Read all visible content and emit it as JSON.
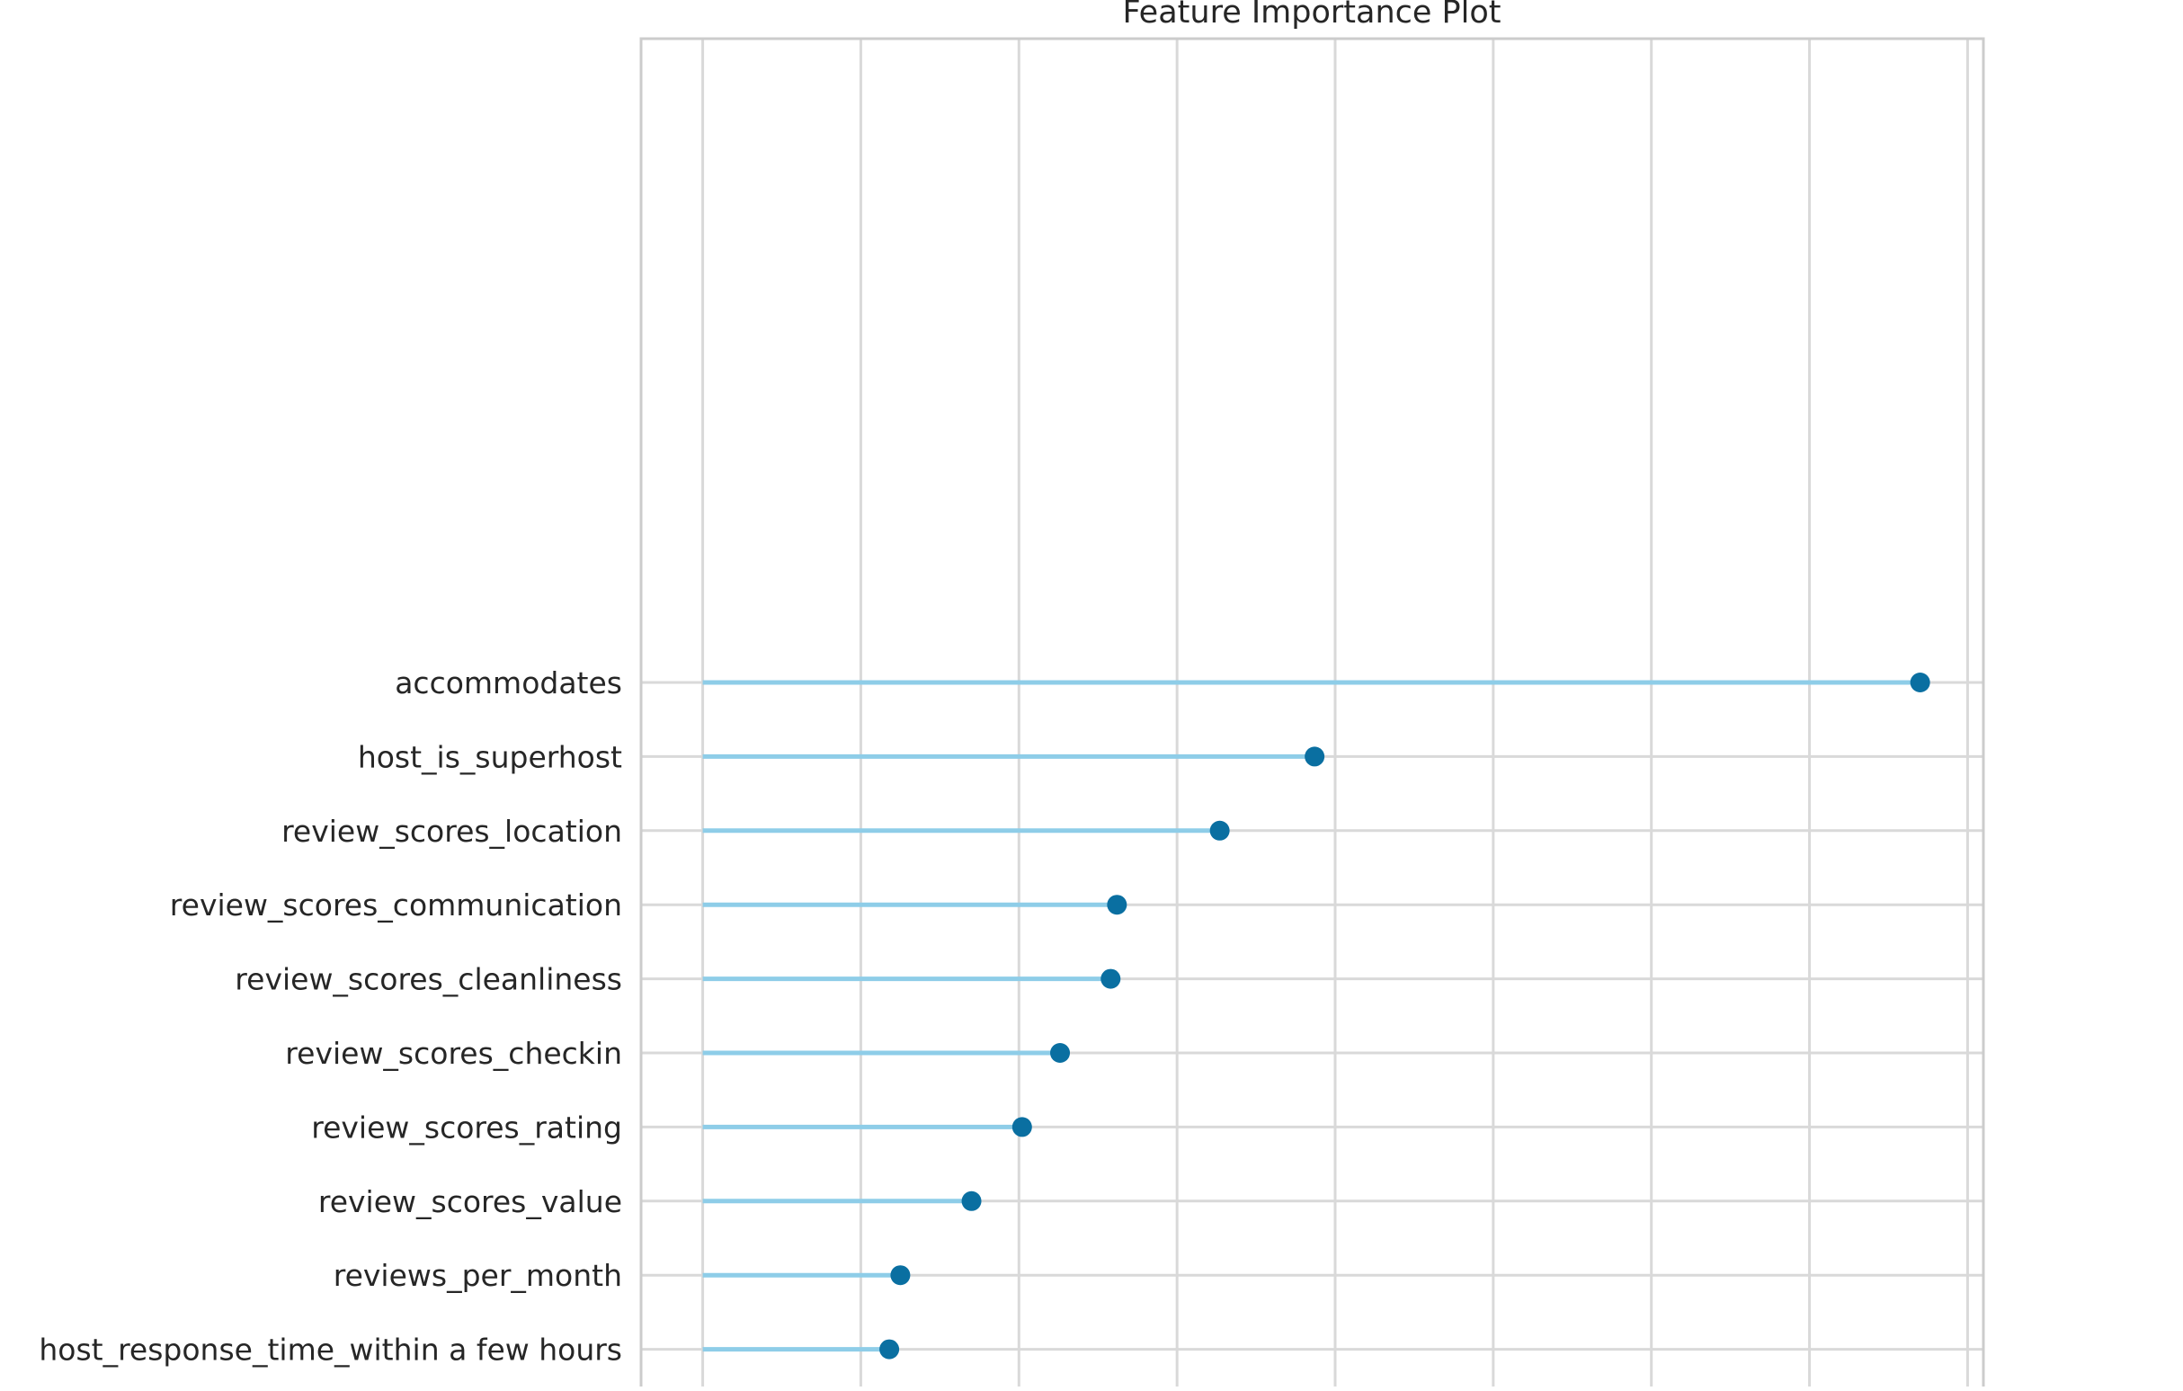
{
  "chart_data": {
    "type": "lollipop",
    "title": "Feature Importance Plot",
    "xlabel": "",
    "ylabel": "",
    "grid": true,
    "categories": [
      "accommodates",
      "host_is_superhost",
      "review_scores_location",
      "review_scores_communication",
      "review_scores_cleanliness",
      "review_scores_checkin",
      "review_scores_rating",
      "review_scores_value",
      "reviews_per_month",
      "host_response_time_within a few hours"
    ],
    "values": [
      7.7,
      3.87,
      3.27,
      2.62,
      2.58,
      2.26,
      2.02,
      1.7,
      1.25,
      1.18
    ],
    "xlim": [
      -0.39,
      8.1
    ],
    "x_gridlines": [
      0,
      1,
      2,
      3,
      4,
      5,
      6,
      7,
      8
    ],
    "colors": {
      "stem": "#8ecde8",
      "marker": "#0a6fa1",
      "grid": "#d9d9d9",
      "frame": "#cccccc",
      "text": "#262626"
    }
  }
}
